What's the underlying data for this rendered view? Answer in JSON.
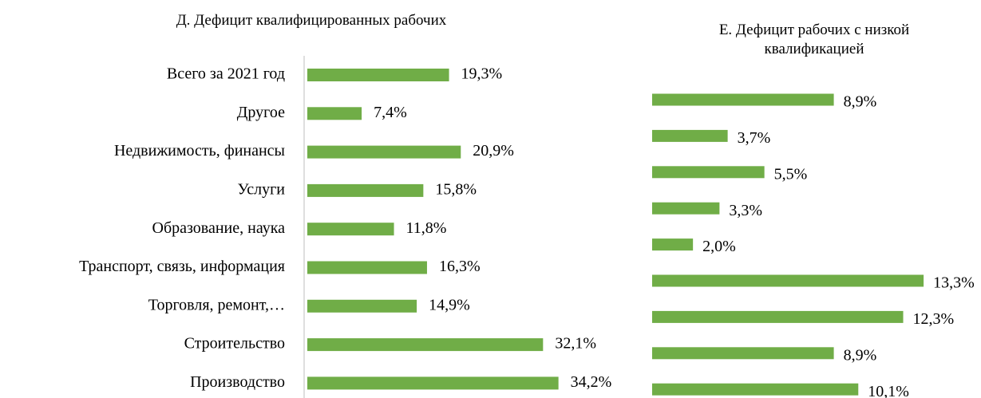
{
  "chart_data": [
    {
      "type": "bar",
      "orientation": "horizontal",
      "title": "Д. Дефицит квалифицированных рабочих",
      "categories": [
        "Всего за 2021 год",
        "Другое",
        "Недвижимость, финансы",
        "Услуги",
        "Образование, наука",
        "Транспорт, связь, информация",
        "Торговля, ремонт,…",
        "Строительство",
        "Производство"
      ],
      "values": [
        19.3,
        7.4,
        20.9,
        15.8,
        11.8,
        16.3,
        14.9,
        32.1,
        34.2
      ],
      "value_labels": [
        "19,3%",
        "7,4%",
        "20,9%",
        "15,8%",
        "11,8%",
        "16,3%",
        "14,9%",
        "32,1%",
        "34,2%"
      ],
      "color": "#70ad47",
      "xlim": [
        0,
        35
      ],
      "axis_line": true
    },
    {
      "type": "bar",
      "orientation": "horizontal",
      "title": "Е. Дефицит рабочих с низкой квалификацией",
      "categories": [
        null,
        null,
        null,
        null,
        null,
        null,
        null,
        null,
        null
      ],
      "values": [
        8.9,
        3.7,
        5.5,
        3.3,
        2.0,
        13.3,
        12.3,
        8.9,
        10.1
      ],
      "value_labels": [
        "8,9%",
        "3,7%",
        "5,5%",
        "3,3%",
        "2,0%",
        "13,3%",
        "12,3%",
        "8,9%",
        "10,1%"
      ],
      "color": "#70ad47",
      "xlim": [
        0,
        14
      ],
      "axis_line": false
    }
  ]
}
